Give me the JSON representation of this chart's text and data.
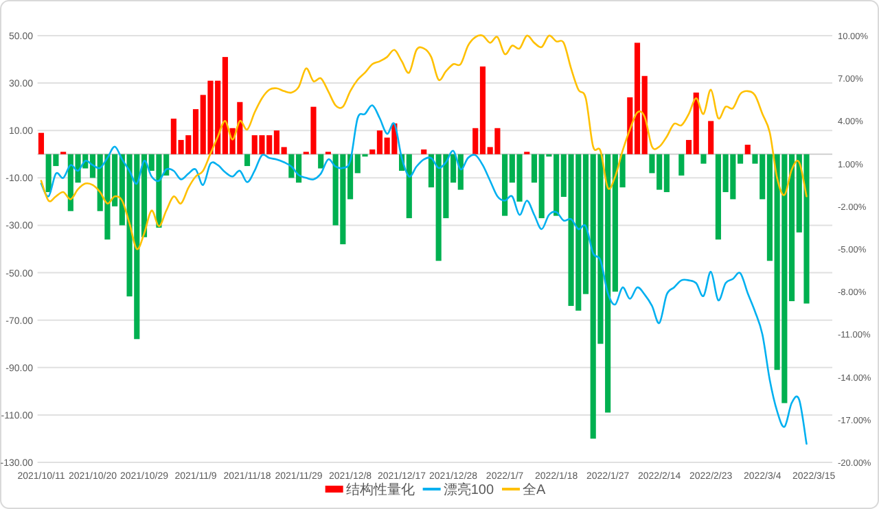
{
  "chart_data": {
    "type": "bar",
    "categories": [
      "2021/10/11",
      null,
      null,
      null,
      null,
      null,
      null,
      "2021/10/20",
      null,
      null,
      null,
      null,
      null,
      null,
      "2021/10/29",
      null,
      null,
      null,
      null,
      null,
      null,
      "2021/11/9",
      null,
      null,
      null,
      null,
      null,
      null,
      "2021/11/18",
      null,
      null,
      null,
      null,
      null,
      null,
      "2021/11/29",
      null,
      null,
      null,
      null,
      null,
      null,
      "2021/12/8",
      null,
      null,
      null,
      null,
      null,
      null,
      "2021/12/17",
      null,
      null,
      null,
      null,
      null,
      null,
      "2021/12/28",
      null,
      null,
      null,
      null,
      null,
      null,
      "2022/1/7",
      null,
      null,
      null,
      null,
      null,
      null,
      "2022/1/18",
      null,
      null,
      null,
      null,
      null,
      null,
      "2022/1/27",
      null,
      null,
      null,
      null,
      null,
      null,
      "2022/2/14",
      null,
      null,
      null,
      null,
      null,
      null,
      "2022/2/23",
      null,
      null,
      null,
      null,
      null,
      null,
      "2022/3/4",
      null,
      null,
      null,
      null,
      null,
      null,
      "2022/3/15",
      null,
      null
    ],
    "series": [
      {
        "name": "结构性量化",
        "color": "#ff0000",
        "colors": [
          "#ff0000",
          "#00b050",
          "#00b050",
          "#ff0000",
          "#00b050",
          "#00b050",
          "#00b050",
          "#00b050",
          "#00b050",
          "#00b050",
          "#00b050",
          "#00b050",
          "#00b050",
          "#00b050",
          "#00b050",
          "#00b050",
          "#00b050",
          "#00b050",
          "#ff0000",
          "#ff0000",
          "#ff0000",
          "#ff0000",
          "#ff0000",
          "#ff0000",
          "#ff0000",
          "#ff0000",
          "#ff0000",
          "#ff0000",
          "#00b050",
          "#ff0000",
          "#ff0000",
          "#ff0000",
          "#ff0000",
          "#ff0000",
          "#00b050",
          "#00b050",
          "#ff0000",
          "#ff0000",
          "#00b050",
          "#ff0000",
          "#00b050",
          "#00b050",
          "#00b050",
          "#00b050",
          "#00b050",
          "#ff0000",
          "#ff0000",
          "#ff0000",
          "#ff0000",
          "#00b050",
          "#00b050",
          "#00b050",
          "#ff0000",
          "#00b050",
          "#00b050",
          "#00b050",
          "#00b050",
          "#00b050",
          "#00b050",
          "#ff0000",
          "#ff0000",
          "#ff0000",
          "#ff0000",
          "#00b050",
          "#00b050",
          "#00b050",
          "#ff0000",
          "#00b050",
          "#00b050",
          "#00b050",
          "#00b050",
          "#00b050",
          "#00b050",
          "#00b050",
          "#00b050",
          "#00b050",
          "#00b050",
          "#00b050",
          "#00b050",
          "#00b050",
          "#ff0000",
          "#ff0000",
          "#ff0000",
          "#00b050",
          "#00b050",
          "#00b050",
          "#00b050",
          "#00b050",
          "#ff0000",
          "#ff0000",
          "#00b050",
          "#ff0000",
          "#00b050",
          "#00b050",
          "#00b050",
          "#00b050",
          "#ff0000",
          "#00b050",
          "#00b050",
          "#00b050",
          "#00b050",
          "#00b050",
          "#00b050",
          "#00b050",
          "#00b050",
          null,
          null,
          null
        ],
        "values": [
          9,
          -16,
          -5,
          1,
          -24,
          -12,
          -6,
          -10,
          -24,
          -36,
          -22,
          -30,
          -60,
          -78,
          -35,
          -7,
          -31,
          -9,
          15,
          6,
          8,
          19,
          25,
          31,
          31,
          41,
          11,
          22,
          -5,
          8,
          8,
          8,
          10,
          3,
          -10,
          -12,
          1,
          20,
          -6,
          1,
          -30,
          -38,
          -19,
          -8,
          -1,
          2,
          10,
          7,
          13,
          -7,
          -27,
          0,
          2,
          -14,
          -45,
          -27,
          -12,
          -15,
          0,
          11,
          37,
          3,
          11,
          -26,
          -12,
          -20,
          1,
          -12,
          -27,
          -1,
          -26,
          -18,
          -64,
          -66,
          -59,
          -120,
          -80,
          -109,
          -58,
          -14,
          24,
          47,
          33,
          -8,
          -15,
          -16,
          0,
          -9,
          6,
          26,
          -4,
          14,
          -36,
          -16,
          -19,
          -4,
          4,
          -4,
          -19,
          -45,
          -91,
          -105,
          -62,
          -33,
          -63,
          null,
          null,
          null
        ]
      },
      {
        "name": "漂亮100",
        "type": "line",
        "axis": "y2",
        "color": "#00b0f0",
        "values": [
          -0.4,
          -1.3,
          0.3,
          0.0,
          0.9,
          0.5,
          1.2,
          0.9,
          0.7,
          1.4,
          2.2,
          1.3,
          0.5,
          -0.4,
          1.2,
          0.1,
          -0.2,
          0.6,
          0.5,
          -0.1,
          0.3,
          0.6,
          -0.5,
          1.0,
          0.9,
          0.4,
          0.1,
          0.5,
          -0.3,
          0.5,
          1.6,
          1.4,
          1.3,
          1.1,
          0.8,
          0.2,
          0.0,
          -0.1,
          0.3,
          1.3,
          0.8,
          0.7,
          1.2,
          4.2,
          4.5,
          5.1,
          4.2,
          3.1,
          3.8,
          1.4,
          0.1,
          0.8,
          1.3,
          1.4,
          0.7,
          1.1,
          1.9,
          0.6,
          1.4,
          1.6,
          0.9,
          -0.2,
          -1.3,
          -1.6,
          -1.3,
          -2.6,
          -1.6,
          -2.6,
          -3.6,
          -2.6,
          -2.4,
          -3.0,
          -2.9,
          -3.6,
          -3.4,
          -5.3,
          -5.8,
          -8.1,
          -8.9,
          -7.7,
          -8.5,
          -7.7,
          -8.2,
          -9.0,
          -10.2,
          -8.2,
          -7.7,
          -7.2,
          -7.2,
          -7.4,
          -8.3,
          -6.6,
          -8.6,
          -7.4,
          -7.1,
          -6.7,
          -8.1,
          -9.4,
          -11.0,
          -14.2,
          -16.4,
          -17.5,
          -15.8,
          -15.6,
          -18.7,
          null,
          null,
          null
        ]
      },
      {
        "name": "全A",
        "type": "line",
        "axis": "y2",
        "color": "#ffc000",
        "values": [
          -0.2,
          -1.6,
          -1.3,
          -1.0,
          -1.5,
          -0.8,
          -0.4,
          -0.5,
          -1.0,
          -1.8,
          -1.3,
          -1.6,
          -3.2,
          -5.0,
          -3.9,
          -2.3,
          -3.4,
          -2.3,
          -1.3,
          -1.8,
          -0.7,
          0.1,
          0.5,
          1.7,
          2.9,
          4.0,
          2.7,
          4.0,
          3.4,
          4.6,
          5.6,
          6.2,
          6.3,
          6.1,
          6.0,
          6.4,
          7.7,
          6.8,
          7.0,
          6.1,
          5.1,
          5.0,
          6.1,
          6.9,
          7.4,
          8.0,
          8.2,
          8.5,
          9.0,
          8.2,
          7.4,
          9.0,
          9.1,
          8.5,
          6.9,
          7.5,
          8.0,
          8.0,
          9.3,
          9.9,
          10.0,
          9.5,
          9.9,
          8.7,
          9.3,
          9.1,
          10.0,
          9.5,
          9.2,
          10.0,
          9.6,
          9.5,
          7.7,
          6.2,
          5.6,
          2.2,
          1.9,
          -0.7,
          0.1,
          1.9,
          3.4,
          4.6,
          4.3,
          2.2,
          2.2,
          2.9,
          3.8,
          3.7,
          4.5,
          5.6,
          4.5,
          6.2,
          4.2,
          5.0,
          4.9,
          5.9,
          6.1,
          5.8,
          4.5,
          3.2,
          0.0,
          -1.2,
          0.6,
          1.1,
          -1.3,
          null,
          null,
          null
        ]
      }
    ],
    "ylim": [
      -130,
      50
    ],
    "yticks": [
      {
        "value": 50,
        "label": "50.00"
      },
      {
        "value": 30,
        "label": "30.00"
      },
      {
        "value": 10,
        "label": "10.00"
      },
      {
        "value": -10,
        "label": "-10.00"
      },
      {
        "value": -30,
        "label": "-30.00"
      },
      {
        "value": -50,
        "label": "-50.00"
      },
      {
        "value": -70,
        "label": "-70.00"
      },
      {
        "value": -90,
        "label": "-90.00"
      },
      {
        "value": -110,
        "label": "-110.00"
      },
      {
        "value": -130,
        "label": "-130.00"
      }
    ],
    "y2lim": [
      -20,
      10
    ],
    "y2ticks": [
      {
        "value": 10,
        "label": "10.00%"
      },
      {
        "value": 7,
        "label": "7.00%"
      },
      {
        "value": 4,
        "label": "4.00%"
      },
      {
        "value": 1,
        "label": "1.00%"
      },
      {
        "value": -2,
        "label": "-2.00%"
      },
      {
        "value": -5,
        "label": "-5.00%"
      },
      {
        "value": -8,
        "label": "-8.00%"
      },
      {
        "value": -11,
        "label": "-11.00%"
      },
      {
        "value": -14,
        "label": "-14.00%"
      },
      {
        "value": -17,
        "label": "-17.00%"
      },
      {
        "value": -20,
        "label": "-20.00%"
      }
    ],
    "grid": "y",
    "legend": "bottom"
  }
}
